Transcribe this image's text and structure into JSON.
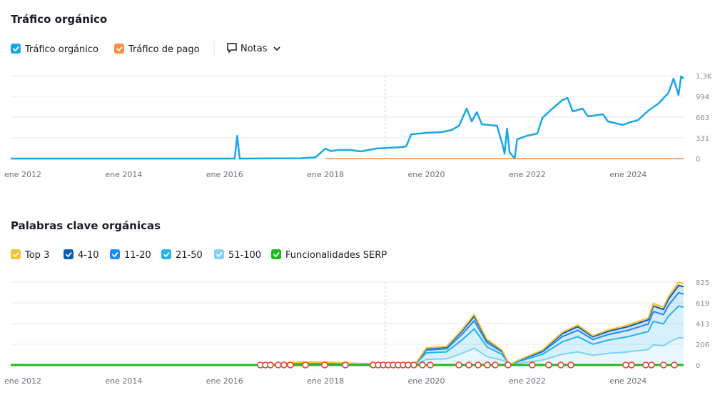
{
  "ui": {
    "notes_label": "Notas"
  },
  "chart_data": [
    {
      "type": "line",
      "title": "Tráfico orgánico",
      "grid": true,
      "xlim": [
        2011.76,
        2025.1
      ],
      "ylim": [
        0,
        1326
      ],
      "xticks": [
        {
          "value": 2012,
          "label": "ene 2012"
        },
        {
          "value": 2014,
          "label": "ene 2014"
        },
        {
          "value": 2016,
          "label": "ene 2016"
        },
        {
          "value": 2018,
          "label": "ene 2018"
        },
        {
          "value": 2020,
          "label": "ene 2020"
        },
        {
          "value": 2022,
          "label": "ene 2022"
        },
        {
          "value": 2024,
          "label": "ene 2024"
        }
      ],
      "yticks": [
        0,
        331,
        663,
        994,
        {
          "value": 1326,
          "label": "1,3K"
        }
      ],
      "series": [
        {
          "name": "Tráfico orgánico",
          "color": "#17a8ea",
          "x": [
            2011.76,
            2016.2,
            2016.25,
            2016.3,
            2017.5,
            2017.8,
            2018.0,
            2018.1,
            2018.25,
            2018.5,
            2018.7,
            2019.0,
            2019.5,
            2019.6,
            2019.7,
            2020.0,
            2020.3,
            2020.5,
            2020.65,
            2020.8,
            2020.9,
            2021.0,
            2021.1,
            2021.4,
            2021.5,
            2021.55,
            2021.6,
            2021.65,
            2021.75,
            2021.8,
            2022.0,
            2022.2,
            2022.3,
            2022.5,
            2022.7,
            2022.8,
            2022.9,
            2023.1,
            2023.2,
            2023.5,
            2023.6,
            2023.9,
            2024.0,
            2024.2,
            2024.4,
            2024.6,
            2024.8,
            2024.9,
            2025.0,
            2025.05,
            2025.1
          ],
          "values": [
            0,
            0,
            366,
            0,
            5,
            20,
            160,
            120,
            137,
            137,
            114,
            160,
            183,
            194,
            389,
            411,
            423,
            457,
            526,
            800,
            594,
            743,
            549,
            526,
            251,
            80,
            480,
            103,
            0,
            309,
            366,
            400,
            651,
            800,
            937,
            971,
            754,
            800,
            674,
            709,
            594,
            537,
            571,
            617,
            766,
            880,
            1051,
            1280,
            1017,
            1314,
            1280
          ]
        },
        {
          "name": "Tráfico de pago",
          "color": "#ff8c42",
          "x": [
            2018.0,
            2025.1
          ],
          "values": [
            0,
            0
          ]
        }
      ]
    },
    {
      "type": "area",
      "stacked": true,
      "title": "Palabras clave orgánicas",
      "grid": true,
      "xlim": [
        2011.76,
        2025.1
      ],
      "ylim": [
        0,
        825
      ],
      "xticks": [
        {
          "value": 2012,
          "label": "ene 2012"
        },
        {
          "value": 2014,
          "label": "ene 2014"
        },
        {
          "value": 2016,
          "label": "ene 2016"
        },
        {
          "value": 2018,
          "label": "ene 2018"
        },
        {
          "value": 2020,
          "label": "ene 2020"
        },
        {
          "value": 2022,
          "label": "ene 2022"
        },
        {
          "value": 2024,
          "label": "ene 2024"
        }
      ],
      "yticks": [
        0,
        206,
        413,
        619,
        825
      ],
      "x": [
        2011.76,
        2016.7,
        2017.5,
        2018.0,
        2019.0,
        2019.8,
        2020.0,
        2020.4,
        2020.7,
        2020.95,
        2021.2,
        2021.5,
        2021.65,
        2021.8,
        2022.3,
        2022.7,
        2023.0,
        2023.3,
        2023.6,
        2024.0,
        2024.4,
        2024.5,
        2024.7,
        2024.8,
        2025.0,
        2025.1
      ],
      "series": [
        {
          "name": "Top 3",
          "color": "#f6c131",
          "values": [
            0,
            0,
            1,
            1,
            0,
            1,
            8,
            7,
            14,
            20,
            11,
            6,
            0,
            2,
            6,
            14,
            16,
            12,
            14,
            16,
            19,
            24,
            23,
            28,
            33,
            32
          ]
        },
        {
          "name": "4-10",
          "color": "#0b5bb5",
          "values": [
            0,
            0,
            3,
            3,
            1,
            2,
            15,
            17,
            31,
            45,
            23,
            13,
            0,
            4,
            13,
            29,
            36,
            26,
            31,
            36,
            42,
            55,
            52,
            61,
            74,
            73
          ]
        },
        {
          "name": "11-20",
          "color": "#1a8ff0",
          "values": [
            0,
            0,
            4,
            4,
            1,
            4,
            27,
            30,
            56,
            81,
            41,
            24,
            0,
            7,
            24,
            52,
            64,
            47,
            56,
            64,
            75,
            98,
            92,
            109,
            132,
            130
          ]
        },
        {
          "name": "21-50",
          "color": "#23b4ee",
          "values": [
            0,
            0,
            11,
            11,
            3,
            10,
            65,
            70,
            132,
            192,
            97,
            57,
            0,
            16,
            57,
            124,
            151,
            111,
            132,
            151,
            178,
            233,
            219,
            260,
            314,
            308
          ]
        },
        {
          "name": "51-100",
          "color": "#80d1f5",
          "values": [
            0,
            0,
            9,
            9,
            3,
            8,
            56,
            61,
            115,
            167,
            84,
            49,
            0,
            14,
            49,
            108,
            131,
            96,
            115,
            131,
            155,
            202,
            190,
            225,
            272,
            268
          ]
        },
        {
          "name": "Funcionalidades SERP",
          "color": "#1fb81f"
        }
      ]
    }
  ]
}
